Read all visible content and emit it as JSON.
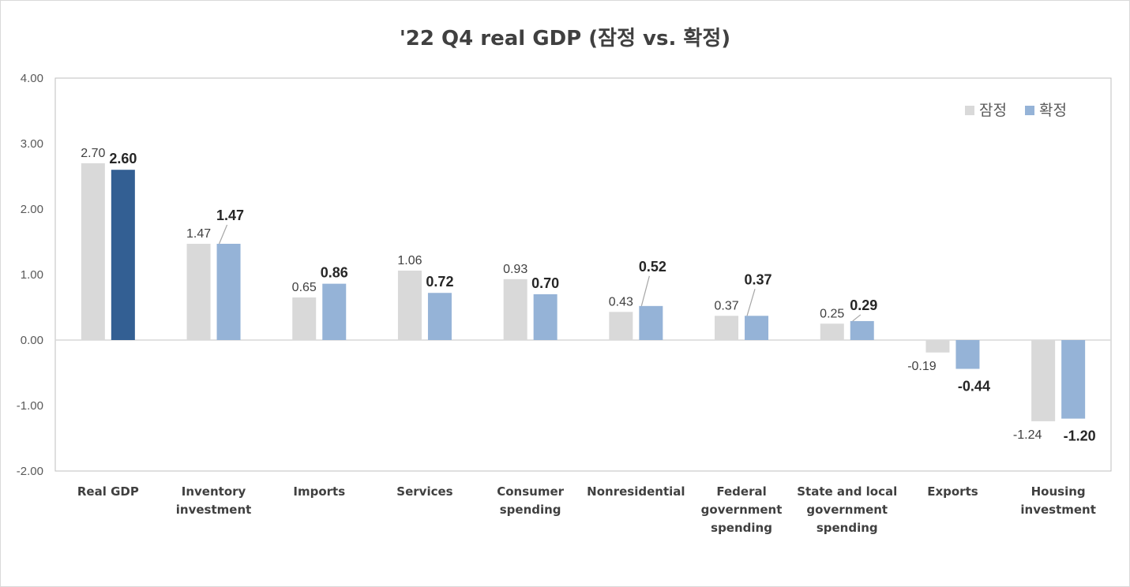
{
  "chart_data": {
    "type": "bar",
    "title": "'22 Q4 real GDP (잠정 vs. 확정)",
    "categories": [
      "Real GDP",
      "Inventory investment",
      "Imports",
      "Services",
      "Consumer spending",
      "Nonresidential",
      "Federal government spending",
      "State and local government spending",
      "Exports",
      "Housing investment"
    ],
    "series": [
      {
        "name": "잠정",
        "values": [
          2.7,
          1.47,
          0.65,
          1.06,
          0.93,
          0.43,
          0.37,
          0.25,
          -0.19,
          -1.24
        ],
        "color": "#d9d9d9"
      },
      {
        "name": "확정",
        "values": [
          2.6,
          1.47,
          0.86,
          0.72,
          0.7,
          0.52,
          0.37,
          0.29,
          -0.44,
          -1.2
        ],
        "color": "#95b3d7"
      }
    ],
    "highlight_color": "#335f93",
    "ylim": [
      -2.0,
      4.0
    ],
    "yticks": [
      "4.00",
      "3.00",
      "2.00",
      "1.00",
      "0.00",
      "-1.00",
      "-2.00"
    ],
    "grid": false,
    "legend_position": "top-right"
  }
}
